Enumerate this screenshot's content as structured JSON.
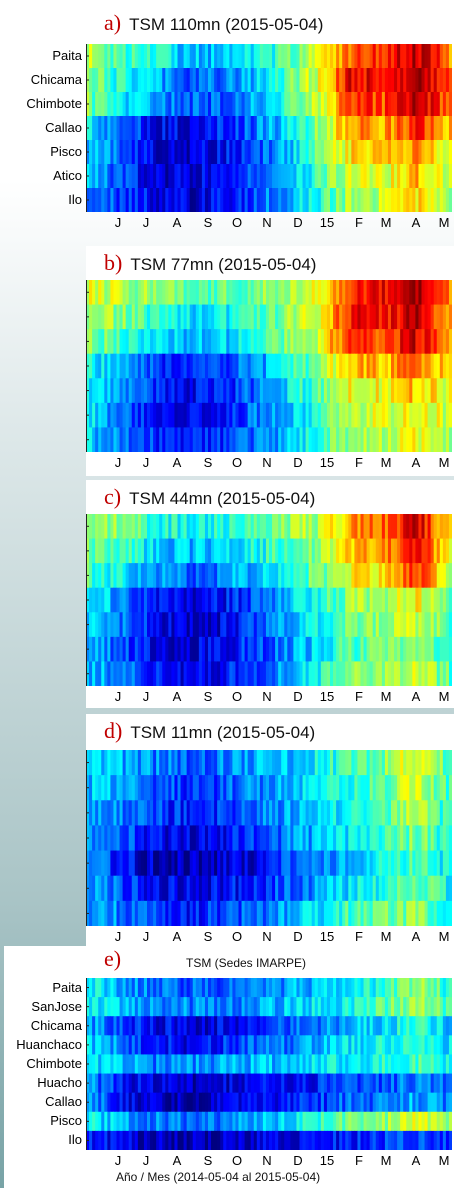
{
  "chart_data": [
    {
      "type": "heatmap",
      "letter": "a)",
      "title": "TSM 110mn (2015-05-04)",
      "rows": [
        "Paita",
        "Chicama",
        "Chimbote",
        "Callao",
        "Pisco",
        "Atico",
        "Ilo"
      ],
      "x_ticks": [
        "J",
        "J",
        "A",
        "S",
        "O",
        "N",
        "D",
        "15",
        "F",
        "M",
        "A",
        "M"
      ],
      "row_profiles": [
        [
          0.55,
          0.45,
          0.4,
          0.32,
          0.3,
          0.35,
          0.45,
          0.55,
          0.8,
          0.85,
          0.95,
          0.75
        ],
        [
          0.5,
          0.4,
          0.3,
          0.22,
          0.25,
          0.3,
          0.45,
          0.6,
          0.92,
          0.85,
          0.98,
          0.8
        ],
        [
          0.5,
          0.35,
          0.28,
          0.2,
          0.22,
          0.28,
          0.42,
          0.55,
          0.85,
          0.8,
          0.95,
          0.75
        ],
        [
          0.35,
          0.25,
          0.12,
          0.1,
          0.15,
          0.22,
          0.35,
          0.5,
          0.75,
          0.7,
          0.85,
          0.7
        ],
        [
          0.32,
          0.22,
          0.1,
          0.08,
          0.12,
          0.2,
          0.3,
          0.48,
          0.65,
          0.65,
          0.75,
          0.6
        ],
        [
          0.3,
          0.2,
          0.1,
          0.08,
          0.12,
          0.2,
          0.3,
          0.42,
          0.6,
          0.58,
          0.7,
          0.55
        ],
        [
          0.28,
          0.2,
          0.12,
          0.08,
          0.12,
          0.2,
          0.28,
          0.4,
          0.55,
          0.55,
          0.65,
          0.5
        ]
      ]
    },
    {
      "type": "heatmap",
      "letter": "b)",
      "title": "TSM 77mn (2015-05-04)",
      "rows": [],
      "x_ticks": [
        "J",
        "J",
        "A",
        "S",
        "O",
        "N",
        "D",
        "15",
        "F",
        "M",
        "A",
        "M"
      ],
      "row_profiles": [
        [
          0.6,
          0.55,
          0.5,
          0.45,
          0.45,
          0.5,
          0.55,
          0.62,
          0.85,
          0.88,
          0.95,
          0.75
        ],
        [
          0.55,
          0.5,
          0.4,
          0.35,
          0.35,
          0.42,
          0.5,
          0.6,
          0.88,
          0.85,
          0.95,
          0.72
        ],
        [
          0.5,
          0.45,
          0.35,
          0.3,
          0.32,
          0.38,
          0.48,
          0.58,
          0.85,
          0.8,
          0.92,
          0.7
        ],
        [
          0.4,
          0.3,
          0.2,
          0.15,
          0.18,
          0.25,
          0.38,
          0.5,
          0.7,
          0.68,
          0.78,
          0.62
        ],
        [
          0.38,
          0.28,
          0.18,
          0.12,
          0.15,
          0.22,
          0.35,
          0.45,
          0.62,
          0.62,
          0.7,
          0.58
        ],
        [
          0.35,
          0.25,
          0.15,
          0.12,
          0.15,
          0.22,
          0.32,
          0.42,
          0.58,
          0.58,
          0.65,
          0.55
        ],
        [
          0.33,
          0.25,
          0.18,
          0.12,
          0.15,
          0.22,
          0.3,
          0.42,
          0.55,
          0.55,
          0.62,
          0.52
        ]
      ]
    },
    {
      "type": "heatmap",
      "letter": "c)",
      "title": "TSM 44mn (2015-05-04)",
      "rows": [],
      "x_ticks": [
        "J",
        "J",
        "A",
        "S",
        "O",
        "N",
        "D",
        "15",
        "F",
        "M",
        "A",
        "M"
      ],
      "row_profiles": [
        [
          0.55,
          0.5,
          0.42,
          0.38,
          0.4,
          0.45,
          0.5,
          0.55,
          0.72,
          0.78,
          0.92,
          0.65
        ],
        [
          0.5,
          0.45,
          0.35,
          0.3,
          0.32,
          0.38,
          0.45,
          0.52,
          0.7,
          0.72,
          0.88,
          0.62
        ],
        [
          0.45,
          0.38,
          0.28,
          0.22,
          0.25,
          0.32,
          0.4,
          0.48,
          0.62,
          0.65,
          0.82,
          0.58
        ],
        [
          0.35,
          0.28,
          0.15,
          0.1,
          0.12,
          0.2,
          0.3,
          0.4,
          0.52,
          0.55,
          0.62,
          0.48
        ],
        [
          0.33,
          0.25,
          0.12,
          0.08,
          0.1,
          0.18,
          0.28,
          0.38,
          0.48,
          0.5,
          0.58,
          0.45
        ],
        [
          0.3,
          0.22,
          0.12,
          0.08,
          0.12,
          0.18,
          0.26,
          0.35,
          0.45,
          0.48,
          0.55,
          0.42
        ],
        [
          0.32,
          0.25,
          0.15,
          0.1,
          0.12,
          0.2,
          0.28,
          0.4,
          0.55,
          0.52,
          0.58,
          0.45
        ]
      ]
    },
    {
      "type": "heatmap",
      "letter": "d)",
      "title": "TSM 11mn (2015-05-04)",
      "rows": [],
      "x_ticks": [
        "J",
        "J",
        "A",
        "S",
        "O",
        "N",
        "D",
        "15",
        "F",
        "M",
        "A",
        "M"
      ],
      "row_profiles": [
        [
          0.35,
          0.3,
          0.25,
          0.22,
          0.25,
          0.28,
          0.32,
          0.38,
          0.45,
          0.5,
          0.62,
          0.45
        ],
        [
          0.32,
          0.28,
          0.22,
          0.18,
          0.2,
          0.25,
          0.3,
          0.35,
          0.42,
          0.48,
          0.58,
          0.42
        ],
        [
          0.3,
          0.25,
          0.18,
          0.15,
          0.18,
          0.22,
          0.28,
          0.33,
          0.4,
          0.45,
          0.55,
          0.4
        ],
        [
          0.28,
          0.22,
          0.12,
          0.1,
          0.12,
          0.18,
          0.25,
          0.3,
          0.38,
          0.42,
          0.5,
          0.38
        ],
        [
          0.25,
          0.15,
          0.06,
          0.04,
          0.06,
          0.1,
          0.18,
          0.25,
          0.32,
          0.38,
          0.45,
          0.35
        ],
        [
          0.28,
          0.2,
          0.12,
          0.1,
          0.12,
          0.15,
          0.22,
          0.28,
          0.35,
          0.4,
          0.48,
          0.38
        ],
        [
          0.3,
          0.25,
          0.18,
          0.15,
          0.18,
          0.22,
          0.28,
          0.35,
          0.45,
          0.48,
          0.52,
          0.4
        ]
      ]
    },
    {
      "type": "heatmap",
      "letter": "e)",
      "title": "TSM (Sedes IMARPE)",
      "xlabel": "Año / Mes (2014-05-04 al 2015-05-04)",
      "rows": [
        "Paita",
        "SanJose",
        "Chicama",
        "Huanchaco",
        "Chimbote",
        "Huacho",
        "Callao",
        "Pisco",
        "Ilo"
      ],
      "x_ticks": [
        "J",
        "J",
        "A",
        "S",
        "O",
        "N",
        "D",
        "15",
        "F",
        "M",
        "A",
        "M"
      ],
      "row_profiles": [
        [
          0.38,
          0.3,
          0.25,
          0.22,
          0.22,
          0.25,
          0.28,
          0.32,
          0.38,
          0.42,
          0.55,
          0.4
        ],
        [
          0.38,
          0.32,
          0.28,
          0.25,
          0.25,
          0.28,
          0.32,
          0.35,
          0.4,
          0.45,
          0.55,
          0.42
        ],
        [
          0.3,
          0.2,
          0.12,
          0.1,
          0.1,
          0.15,
          0.2,
          0.25,
          0.3,
          0.35,
          0.42,
          0.32
        ],
        [
          0.32,
          0.25,
          0.15,
          0.12,
          0.15,
          0.2,
          0.25,
          0.3,
          0.35,
          0.38,
          0.42,
          0.35
        ],
        [
          0.38,
          0.3,
          0.25,
          0.25,
          0.28,
          0.3,
          0.32,
          0.35,
          0.38,
          0.4,
          0.45,
          0.38
        ],
        [
          0.28,
          0.15,
          0.08,
          0.06,
          0.08,
          0.1,
          0.12,
          0.15,
          0.18,
          0.22,
          0.25,
          0.2
        ],
        [
          0.28,
          0.15,
          0.06,
          0.04,
          0.08,
          0.1,
          0.15,
          0.18,
          0.22,
          0.25,
          0.3,
          0.22
        ],
        [
          0.38,
          0.3,
          0.25,
          0.22,
          0.25,
          0.28,
          0.35,
          0.4,
          0.5,
          0.52,
          0.62,
          0.48
        ],
        [
          0.15,
          0.1,
          0.06,
          0.05,
          0.06,
          0.08,
          0.1,
          0.12,
          0.15,
          0.18,
          0.22,
          0.15
        ]
      ]
    }
  ]
}
